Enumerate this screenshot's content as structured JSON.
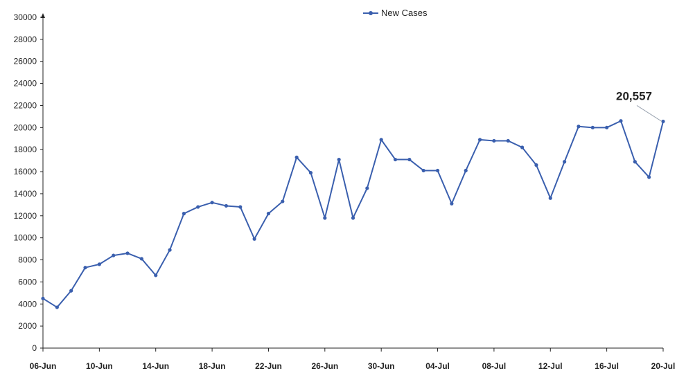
{
  "chart_data": {
    "type": "line",
    "title": "",
    "xlabel": "",
    "ylabel": "",
    "ylim": [
      0,
      30000
    ],
    "yticks": [
      0,
      2000,
      4000,
      6000,
      8000,
      10000,
      12000,
      14000,
      16000,
      18000,
      20000,
      22000,
      24000,
      26000,
      28000,
      30000
    ],
    "xtick_labels": [
      "06-Jun",
      "10-Jun",
      "14-Jun",
      "18-Jun",
      "22-Jun",
      "26-Jun",
      "30-Jun",
      "04-Jul",
      "08-Jul",
      "12-Jul",
      "16-Jul",
      "20-Jul"
    ],
    "x": [
      "06-Jun",
      "07-Jun",
      "08-Jun",
      "09-Jun",
      "10-Jun",
      "11-Jun",
      "12-Jun",
      "13-Jun",
      "14-Jun",
      "15-Jun",
      "16-Jun",
      "17-Jun",
      "18-Jun",
      "19-Jun",
      "20-Jun",
      "21-Jun",
      "22-Jun",
      "23-Jun",
      "24-Jun",
      "25-Jun",
      "26-Jun",
      "27-Jun",
      "28-Jun",
      "29-Jun",
      "30-Jun",
      "01-Jul",
      "02-Jul",
      "03-Jul",
      "04-Jul",
      "05-Jul",
      "06-Jul",
      "07-Jul",
      "08-Jul",
      "09-Jul",
      "10-Jul",
      "11-Jul",
      "12-Jul",
      "13-Jul",
      "14-Jul",
      "15-Jul",
      "16-Jul",
      "17-Jul",
      "18-Jul",
      "19-Jul",
      "20-Jul"
    ],
    "series": [
      {
        "name": "New Cases",
        "color": "#3a5fae",
        "values": [
          4500,
          3700,
          5200,
          7300,
          7600,
          8400,
          8600,
          8100,
          6600,
          8900,
          12200,
          12800,
          13200,
          12900,
          12800,
          9900,
          12200,
          13300,
          17300,
          15900,
          11800,
          17100,
          11800,
          14500,
          18900,
          17100,
          17100,
          16100,
          16100,
          13100,
          16100,
          18900,
          18800,
          18800,
          18200,
          16600,
          13600,
          16900,
          20100,
          20000,
          20000,
          20600,
          16900,
          15500,
          20557
        ]
      }
    ],
    "annotation": {
      "text": "20,557",
      "target": "20-Jul"
    },
    "grid": false,
    "legend": {
      "position": "top-center"
    }
  }
}
